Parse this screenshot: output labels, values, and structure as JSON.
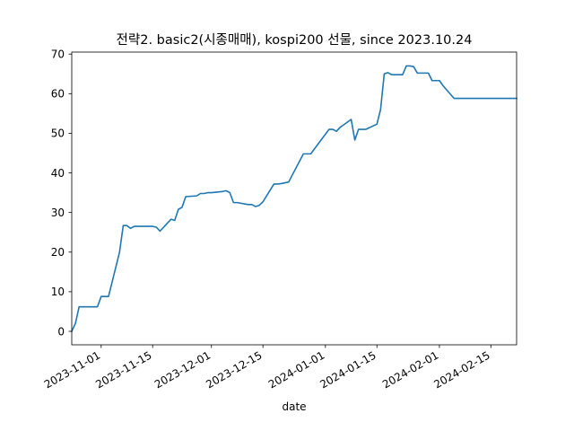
{
  "chart_data": {
    "type": "line",
    "title": "전략2. basic2(시종매매), kospi200 선물, since 2023.10.24",
    "xlabel": "date",
    "ylabel": "",
    "xlim": [
      "2023-10-24",
      "2024-02-22"
    ],
    "ylim": [
      -3.4,
      70.5
    ],
    "grid": false,
    "legend": "none",
    "line_color": "#1f77b4",
    "x_ticks": [
      "2023-11-01",
      "2023-11-15",
      "2023-12-01",
      "2023-12-15",
      "2024-01-01",
      "2024-01-15",
      "2024-02-01",
      "2024-02-15"
    ],
    "y_ticks": [
      0,
      10,
      20,
      30,
      40,
      50,
      60,
      70
    ],
    "series": [
      {
        "x": [
          "2023-10-24",
          "2023-10-25",
          "2023-10-26",
          "2023-10-27",
          "2023-10-30",
          "2023-10-31",
          "2023-11-01",
          "2023-11-02",
          "2023-11-03",
          "2023-11-06",
          "2023-11-07",
          "2023-11-08",
          "2023-11-09",
          "2023-11-10",
          "2023-11-13",
          "2023-11-14",
          "2023-11-15",
          "2023-11-16",
          "2023-11-17",
          "2023-11-20",
          "2023-11-21",
          "2023-11-22",
          "2023-11-23",
          "2023-11-24",
          "2023-11-27",
          "2023-11-28",
          "2023-11-29",
          "2023-11-30",
          "2023-12-01",
          "2023-12-04",
          "2023-12-05",
          "2023-12-06",
          "2023-12-07",
          "2023-12-08",
          "2023-12-11",
          "2023-12-12",
          "2023-12-13",
          "2023-12-14",
          "2023-12-15",
          "2023-12-18",
          "2023-12-19",
          "2023-12-20",
          "2023-12-21",
          "2023-12-22",
          "2023-12-26",
          "2023-12-27",
          "2023-12-28",
          "2024-01-02",
          "2024-01-03",
          "2024-01-04",
          "2024-01-05",
          "2024-01-08",
          "2024-01-09",
          "2024-01-10",
          "2024-01-11",
          "2024-01-12",
          "2024-01-15",
          "2024-01-16",
          "2024-01-17",
          "2024-01-18",
          "2024-01-19",
          "2024-01-22",
          "2024-01-23",
          "2024-01-24",
          "2024-01-25",
          "2024-01-26",
          "2024-01-29",
          "2024-01-30",
          "2024-01-31",
          "2024-02-01",
          "2024-02-02",
          "2024-02-05",
          "2024-02-06",
          "2024-02-07",
          "2024-02-08",
          "2024-02-13",
          "2024-02-14",
          "2024-02-15",
          "2024-02-16",
          "2024-02-19",
          "2024-02-20",
          "2024-02-21",
          "2024-02-22"
        ],
        "y": [
          0,
          2,
          6.2,
          6.2,
          6.2,
          6.2,
          8.8,
          8.8,
          8.8,
          20,
          26.7,
          26.7,
          26,
          26.5,
          26.5,
          26.5,
          26.5,
          26.3,
          25.3,
          28.3,
          28,
          30.8,
          31.3,
          34,
          34.2,
          34.8,
          34.8,
          35,
          35,
          35.3,
          35.5,
          35,
          32.5,
          32.5,
          32,
          32,
          31.5,
          31.8,
          32.7,
          37.2,
          37.2,
          37.3,
          37.5,
          37.7,
          44.8,
          44.8,
          44.8,
          51,
          51,
          50.5,
          51.5,
          53.5,
          48.3,
          51,
          51,
          51,
          52.3,
          56,
          65,
          65.3,
          64.8,
          64.8,
          67,
          67,
          66.8,
          65.2,
          65.2,
          63.3,
          63.3,
          63.3,
          62,
          58.8,
          58.8,
          58.8,
          58.8,
          58.8,
          58.8,
          58.8,
          58.8,
          58.8,
          58.8,
          58.8,
          58.8
        ]
      }
    ]
  }
}
